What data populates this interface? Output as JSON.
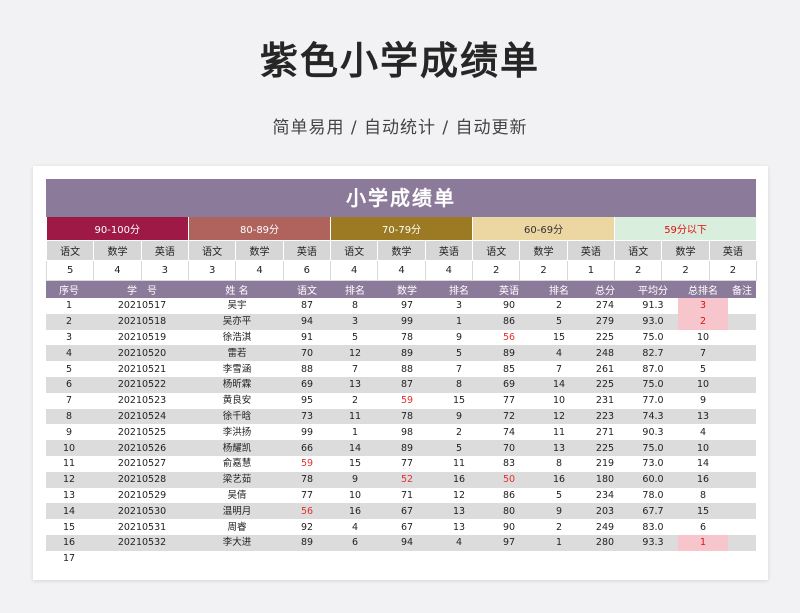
{
  "hero": {
    "title": "紫色小学成绩单",
    "subtitle": "简单易用 / 自动统计 / 自动更新"
  },
  "sheet": {
    "title": "小学成绩单",
    "bands": [
      "90-100分",
      "80-89分",
      "70-79分",
      "60-69分",
      "59分以下"
    ],
    "sub_labels": [
      "语文",
      "数学",
      "英语"
    ],
    "counts": [
      [
        5,
        4,
        3
      ],
      [
        3,
        4,
        6
      ],
      [
        4,
        4,
        4
      ],
      [
        2,
        2,
        1
      ],
      [
        2,
        2,
        2
      ]
    ],
    "columns": [
      "序号",
      "学　号",
      "姓 名",
      "语文",
      "排名",
      "数学",
      "排名",
      "英语",
      "排名",
      "总分",
      "平均分",
      "总排名",
      "备注"
    ],
    "rows": [
      {
        "no": "1",
        "id": "20210517",
        "name": "吴宇",
        "c": "87",
        "cr": "8",
        "m": "97",
        "mr": "3",
        "e": "90",
        "er": "2",
        "total": "274",
        "avg": "91.3",
        "rank": "3"
      },
      {
        "no": "2",
        "id": "20210518",
        "name": "吴亦平",
        "c": "94",
        "cr": "3",
        "m": "99",
        "mr": "1",
        "e": "86",
        "er": "5",
        "total": "279",
        "avg": "93.0",
        "rank": "2"
      },
      {
        "no": "3",
        "id": "20210519",
        "name": "徐浩淇",
        "c": "91",
        "cr": "5",
        "m": "78",
        "mr": "9",
        "e": "56",
        "er": "15",
        "total": "225",
        "avg": "75.0",
        "rank": "10"
      },
      {
        "no": "4",
        "id": "20210520",
        "name": "雷若",
        "c": "70",
        "cr": "12",
        "m": "89",
        "mr": "5",
        "e": "89",
        "er": "4",
        "total": "248",
        "avg": "82.7",
        "rank": "7"
      },
      {
        "no": "5",
        "id": "20210521",
        "name": "李雪涵",
        "c": "88",
        "cr": "7",
        "m": "88",
        "mr": "7",
        "e": "85",
        "er": "7",
        "total": "261",
        "avg": "87.0",
        "rank": "5"
      },
      {
        "no": "6",
        "id": "20210522",
        "name": "杨昕霖",
        "c": "69",
        "cr": "13",
        "m": "87",
        "mr": "8",
        "e": "69",
        "er": "14",
        "total": "225",
        "avg": "75.0",
        "rank": "10"
      },
      {
        "no": "7",
        "id": "20210523",
        "name": "黄良安",
        "c": "95",
        "cr": "2",
        "m": "59",
        "mr": "15",
        "e": "77",
        "er": "10",
        "total": "231",
        "avg": "77.0",
        "rank": "9"
      },
      {
        "no": "8",
        "id": "20210524",
        "name": "徐千晗",
        "c": "73",
        "cr": "11",
        "m": "78",
        "mr": "9",
        "e": "72",
        "er": "12",
        "total": "223",
        "avg": "74.3",
        "rank": "13"
      },
      {
        "no": "9",
        "id": "20210525",
        "name": "李洪扬",
        "c": "99",
        "cr": "1",
        "m": "98",
        "mr": "2",
        "e": "74",
        "er": "11",
        "total": "271",
        "avg": "90.3",
        "rank": "4"
      },
      {
        "no": "10",
        "id": "20210526",
        "name": "杨耀凯",
        "c": "66",
        "cr": "14",
        "m": "89",
        "mr": "5",
        "e": "70",
        "er": "13",
        "total": "225",
        "avg": "75.0",
        "rank": "10"
      },
      {
        "no": "11",
        "id": "20210527",
        "name": "俞嘉慧",
        "c": "59",
        "cr": "15",
        "m": "77",
        "mr": "11",
        "e": "83",
        "er": "8",
        "total": "219",
        "avg": "73.0",
        "rank": "14"
      },
      {
        "no": "12",
        "id": "20210528",
        "name": "梁艺茹",
        "c": "78",
        "cr": "9",
        "m": "52",
        "mr": "16",
        "e": "50",
        "er": "16",
        "total": "180",
        "avg": "60.0",
        "rank": "16"
      },
      {
        "no": "13",
        "id": "20210529",
        "name": "吴倩",
        "c": "77",
        "cr": "10",
        "m": "71",
        "mr": "12",
        "e": "86",
        "er": "5",
        "total": "234",
        "avg": "78.0",
        "rank": "8"
      },
      {
        "no": "14",
        "id": "20210530",
        "name": "温明月",
        "c": "56",
        "cr": "16",
        "m": "67",
        "mr": "13",
        "e": "80",
        "er": "9",
        "total": "203",
        "avg": "67.7",
        "rank": "15"
      },
      {
        "no": "15",
        "id": "20210531",
        "name": "周睿",
        "c": "92",
        "cr": "4",
        "m": "67",
        "mr": "13",
        "e": "90",
        "er": "2",
        "total": "249",
        "avg": "83.0",
        "rank": "6"
      },
      {
        "no": "16",
        "id": "20210532",
        "name": "李大进",
        "c": "89",
        "cr": "6",
        "m": "94",
        "mr": "4",
        "e": "97",
        "er": "1",
        "total": "280",
        "avg": "93.3",
        "rank": "1"
      },
      {
        "no": "17",
        "id": "",
        "name": "",
        "c": "",
        "cr": "",
        "m": "",
        "mr": "",
        "e": "",
        "er": "",
        "total": "",
        "avg": "",
        "rank": ""
      }
    ],
    "colors": {
      "header_purple": "#8c7a9b",
      "band_90_100": "#9e1945",
      "band_80_89": "#b0635d",
      "band_70_79": "#9c7a24",
      "band_60_69": "#ecd6a1",
      "band_below_59": "#d9eedd",
      "fail_red": "#e53030",
      "top_rank_pink": "#f7c6cd"
    }
  }
}
